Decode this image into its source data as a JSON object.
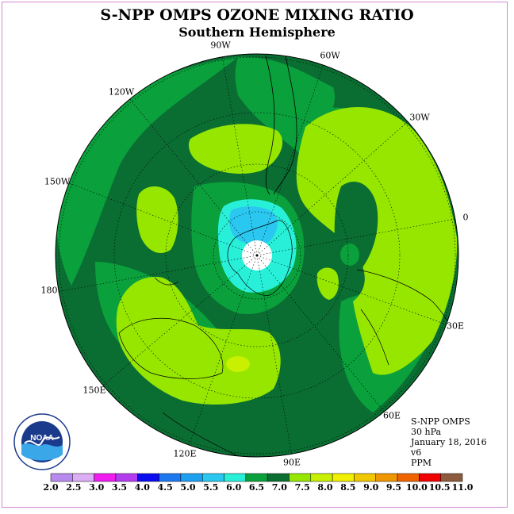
{
  "title": "S-NPP OMPS OZONE MIXING RATIO",
  "subtitle": "Southern Hemisphere",
  "longitude_labels": [
    "90W",
    "60W",
    "30W",
    "0",
    "30E",
    "60E",
    "90E",
    "120E",
    "150E",
    "180",
    "150W",
    "120W"
  ],
  "info": {
    "instrument": "S-NPP OMPS",
    "level": "30 hPa",
    "date": "January 18, 2016",
    "version": "v6",
    "unit": "PPM"
  },
  "logo": {
    "text": "NOAA"
  },
  "colorbar": {
    "ticks": [
      "2.0",
      "2.5",
      "3.0",
      "3.5",
      "4.0",
      "4.5",
      "5.0",
      "5.5",
      "6.0",
      "6.5",
      "7.0",
      "7.5",
      "8.0",
      "8.5",
      "9.0",
      "9.5",
      "10.0",
      "10.5",
      "11.0"
    ],
    "colors": [
      "#b88af0",
      "#dcaef5",
      "#f01cf0",
      "#b43cf0",
      "#0c0cf0",
      "#1e78f0",
      "#1ea0f0",
      "#2ac8f0",
      "#28f0d8",
      "#0aa03c",
      "#0a6e32",
      "#96e600",
      "#c8f000",
      "#f0f000",
      "#f0c800",
      "#f09600",
      "#f06400",
      "#f00000",
      "#8c5a3c"
    ]
  },
  "map_colors": {
    "level_6_5_7_0": "#0a6e32",
    "level_6_0_6_5": "#0aa03c",
    "level_7_5_8_0": "#96e600",
    "level_5_5_6_0": "#28f0d8",
    "level_5_0_5_5": "#2ac8f0",
    "level_8_0_8_5": "#c8f000",
    "level_2_0_2_5": "#ffffff"
  }
}
